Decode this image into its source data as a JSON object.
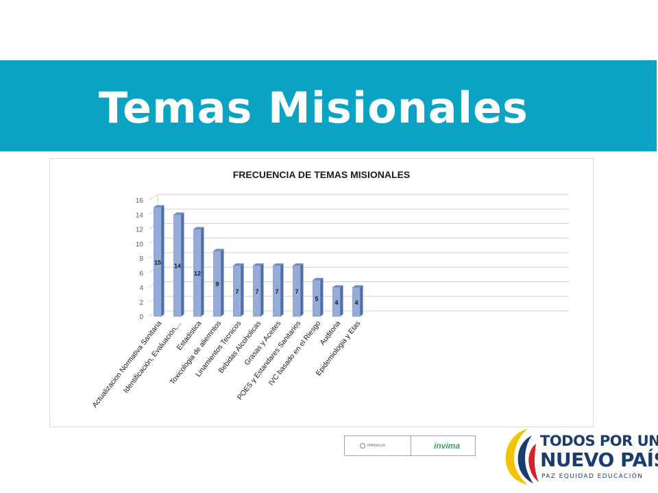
{
  "slide": {
    "title": "Temas Misionales"
  },
  "logos": {
    "minsalud_text": "MINSALUD",
    "invima_text": "invima",
    "brand_line1": "TODOS POR UN",
    "brand_line2": "NUEVO PAÍS",
    "brand_line3": "PAZ  EQUIDAD  EDUCACIÓN"
  },
  "colors": {
    "title_band": "#0aa3c4",
    "bar_front": "#95acd8",
    "bar_side": "#4f6fa8",
    "bar_top": "#6f8cc4",
    "brand_navy": "#1b3d6e"
  },
  "chart_data": {
    "type": "bar",
    "title": "FRECUENCIA DE TEMAS MISIONALES",
    "xlabel": "",
    "ylabel": "",
    "ylim": [
      0,
      16
    ],
    "yticks": [
      0,
      2,
      4,
      6,
      8,
      10,
      12,
      14,
      16
    ],
    "grid": true,
    "legend": "none",
    "bar_style": "3d-column",
    "categories": [
      "Actualizacion Normativa Sanitaria",
      "Identificación, Evaluación,...",
      "Estadistica",
      "Toxicologia de aliemntos",
      "Linamientos Tecnicos",
      "Bebidas Alcoholicas",
      "Grasas y Aceites",
      "POES y Estandares Sanitarios",
      "IVC basado en el Riesgo",
      "Auditoria",
      "Epidemiologia y Etas"
    ],
    "values": [
      15,
      14,
      12,
      9,
      7,
      7,
      7,
      7,
      5,
      4,
      4
    ]
  }
}
